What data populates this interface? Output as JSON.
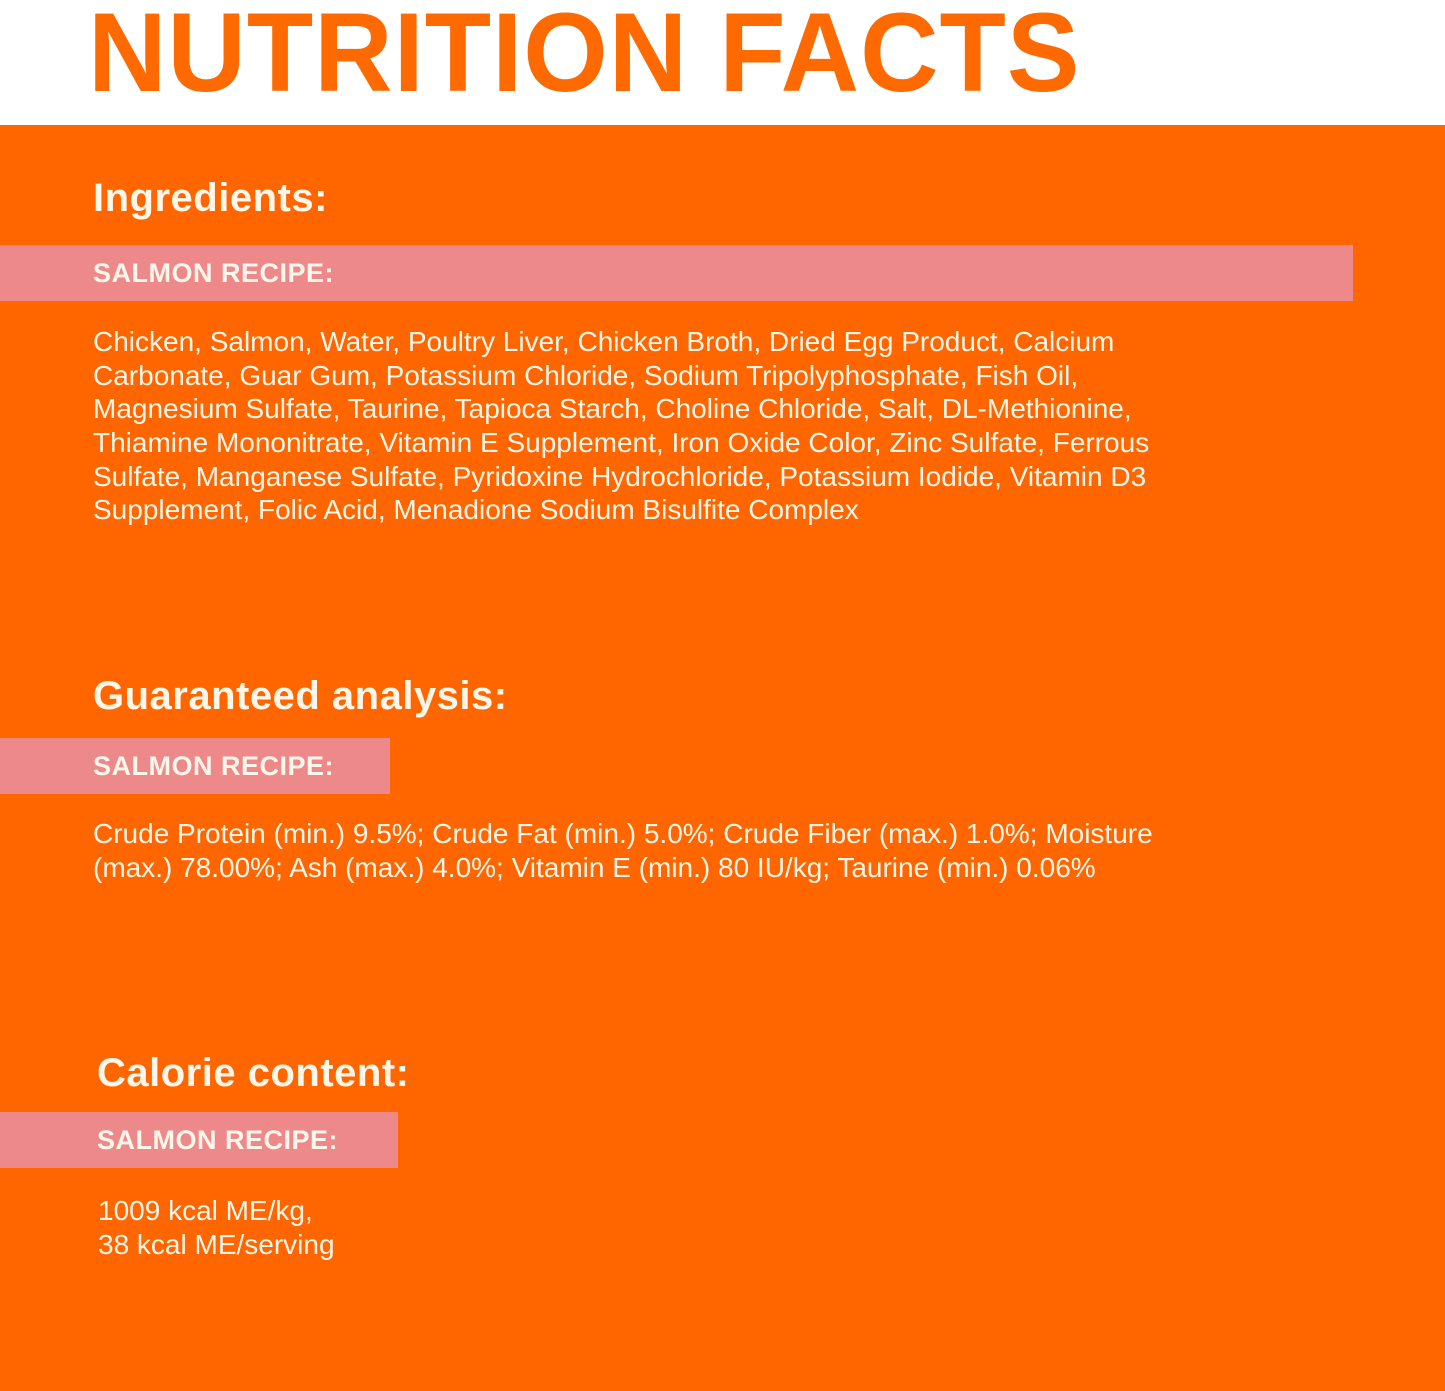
{
  "title": "NUTRITION FACTS",
  "colors": {
    "orange": "#ff6600",
    "pink": "#ee898b",
    "text": "#fff6ea"
  },
  "ingredients": {
    "heading": "Ingredients:",
    "recipe_label": "SALMON RECIPE:",
    "lines": [
      "Chicken,  Salmon, Water, Poultry Liver, Chicken Broth, Dried Egg Product, Calcium",
      "Carbonate, Guar Gum, Potassium Chloride, Sodium Tripolyphosphate, Fish Oil,",
      "Magnesium Sulfate, Taurine, Tapioca Starch, Choline Chloride, Salt, DL-Methionine,",
      "Thiamine Mononitrate, Vitamin E Supplement, Iron Oxide Color, Zinc Sulfate, Ferrous",
      "Sulfate, Manganese Sulfate, Pyridoxine Hydrochloride, Potassium Iodide, Vitamin D3",
      "Supplement, Folic Acid, Menadione Sodium Bisulfite Complex"
    ]
  },
  "analysis": {
    "heading": "Guaranteed analysis:",
    "recipe_label": "SALMON RECIPE:",
    "lines": [
      "Crude Protein (min.) 9.5%; Crude Fat (min.) 5.0%; Crude Fiber (max.) 1.0%; Moisture",
      "(max.) 78.00%; Ash (max.) 4.0%; Vitamin E (min.) 80 IU/kg; Taurine (min.) 0.06%"
    ]
  },
  "calories": {
    "heading": "Calorie content:",
    "recipe_label": "SALMON RECIPE:",
    "lines": [
      "1009 kcal ME/kg,",
      "38 kcal ME/serving"
    ]
  }
}
